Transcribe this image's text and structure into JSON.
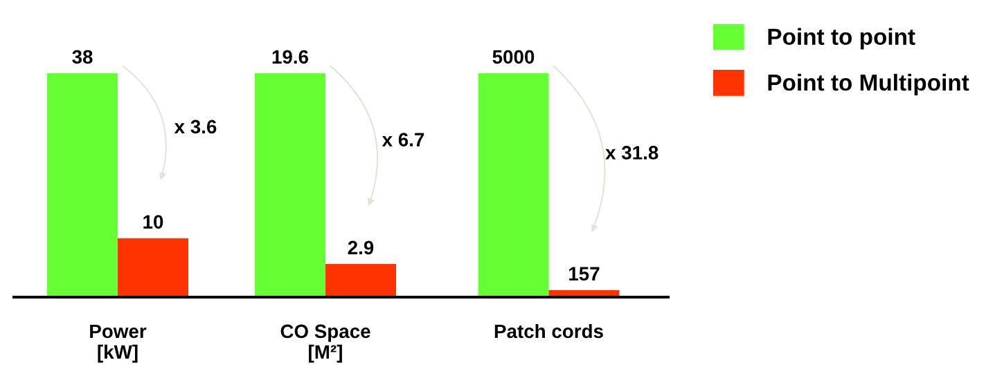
{
  "chart_data": [
    {
      "type": "bar",
      "categories": [
        "Power\n[kW]"
      ],
      "data_labels": true,
      "grid": false,
      "legend": "top right",
      "annotations": [
        "x 3.6"
      ],
      "series": [
        {
          "name": "Point to point",
          "color": "#66ff33",
          "values": [
            38
          ]
        },
        {
          "name": "Point to Multipoint",
          "color": "#ff3300",
          "values": [
            10
          ]
        }
      ]
    },
    {
      "type": "bar",
      "categories": [
        "CO Space\n[M²]"
      ],
      "data_labels": true,
      "grid": false,
      "annotations": [
        "x 6.7"
      ],
      "series": [
        {
          "color": "#66ff33",
          "values": [
            19.6
          ]
        },
        {
          "color": "#ff3300",
          "values": [
            2.9
          ]
        }
      ]
    },
    {
      "type": "bar",
      "categories": [
        "Patch cords"
      ],
      "data_labels": true,
      "grid": false,
      "annotations": [
        "x 31.8"
      ],
      "series": [
        {
          "color": "#66ff33",
          "values": [
            5000
          ]
        },
        {
          "color": "#ff3300",
          "values": [
            157
          ]
        }
      ]
    }
  ]
}
